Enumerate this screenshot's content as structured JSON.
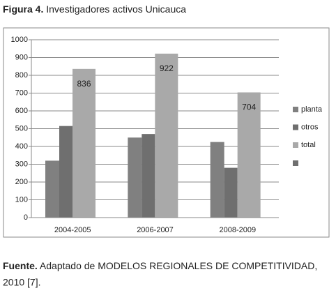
{
  "figure": {
    "label": "Figura 4.",
    "title": "Investigadores activos Unicauca"
  },
  "chart_data": {
    "type": "bar",
    "categories": [
      "2004-2005",
      "2006-2007",
      "2008-2009"
    ],
    "series": [
      {
        "name": "planta",
        "color": "#808080",
        "values": [
          320,
          450,
          425
        ]
      },
      {
        "name": "otros",
        "color": "#6f6f6f",
        "values": [
          515,
          470,
          280
        ]
      },
      {
        "name": "total",
        "color": "#a9a9a9",
        "values": [
          836,
          922,
          704
        ]
      }
    ],
    "ylim": [
      0,
      1000
    ],
    "yticks": [
      0,
      100,
      200,
      300,
      400,
      500,
      600,
      700,
      800,
      900,
      1000
    ],
    "grid": true,
    "legend": "right"
  },
  "source": {
    "label": "Fuente.",
    "lines": [
      "Adaptado de MODELOS REGIONALES DE COMPETITIVIDAD,",
      "2010 [7]."
    ]
  }
}
